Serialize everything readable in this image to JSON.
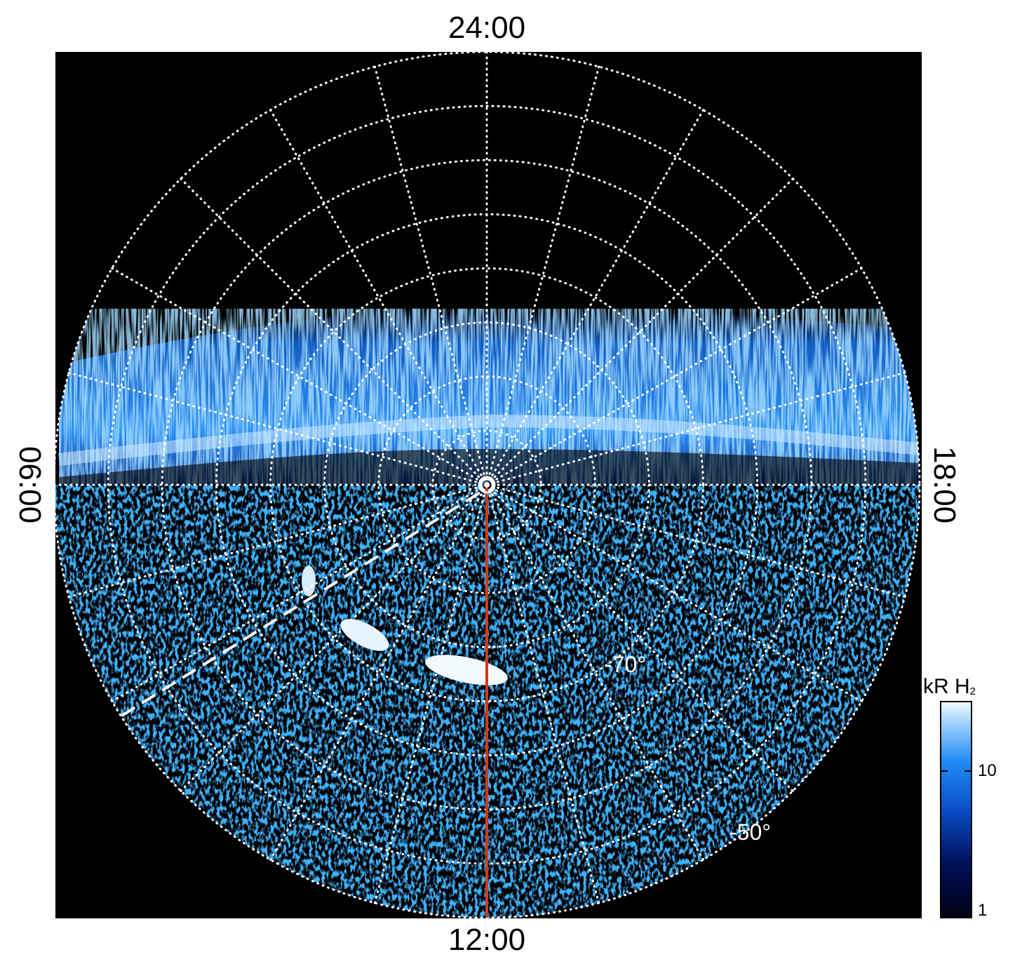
{
  "figure": {
    "mlt_labels": {
      "top": "24:00",
      "bottom": "12:00",
      "left": "06:00",
      "right": "18:00"
    },
    "latitude_labels": [
      {
        "text": "-70°",
        "value": -70
      },
      {
        "text": "-50°",
        "value": -50
      }
    ],
    "colorbar": {
      "title": "kR H",
      "title_sub": "2",
      "scale": "log",
      "range": [
        1,
        30
      ],
      "ticks": [
        {
          "label": "10",
          "value": 10
        },
        {
          "label": "1",
          "value": 1
        }
      ]
    },
    "colors": {
      "background": "#000000",
      "grid": "#ffffff",
      "auroral_bright": "#d8efff",
      "auroral_mid": "#2a8cf0",
      "auroral_dark": "#0a2a8a",
      "noon_meridian": "#d03a1a"
    },
    "grid": {
      "latitude_step_deg": 10,
      "mlt_step_hours": 1,
      "style": "dotted"
    },
    "features": {
      "noon_meridian_line": "solid",
      "dashed_line": "dashed"
    }
  }
}
